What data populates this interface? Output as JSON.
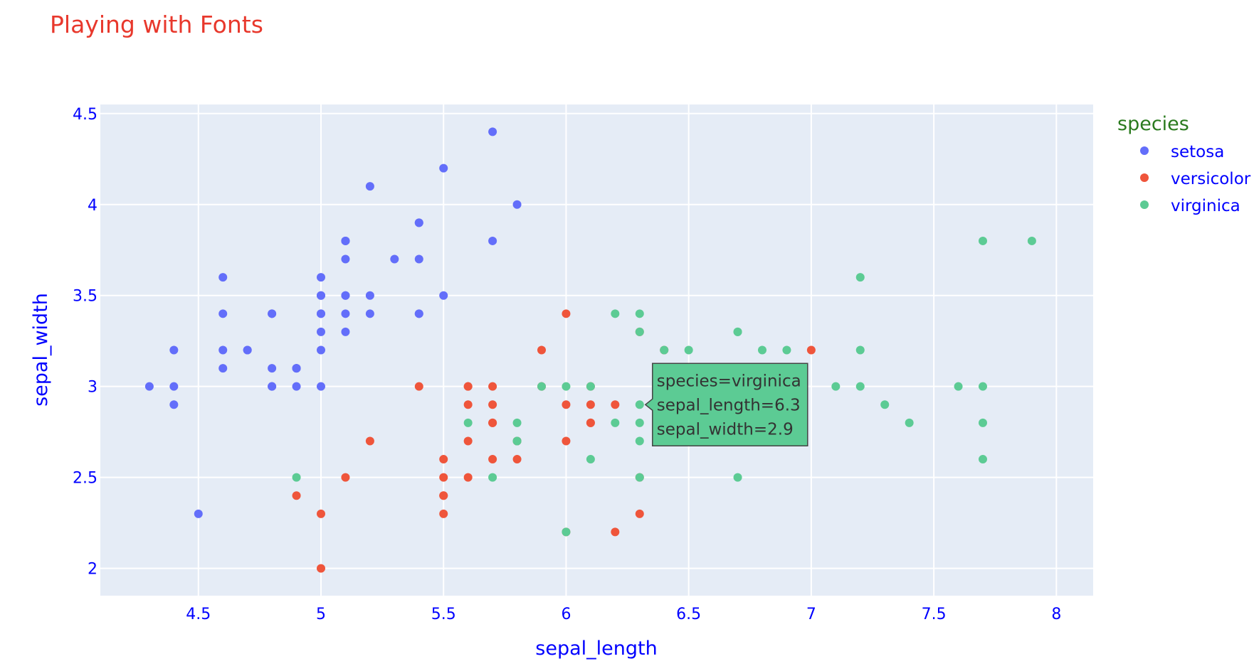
{
  "chart_data": {
    "type": "scatter",
    "title": "Playing with Fonts",
    "xlabel": "sepal_length",
    "ylabel": "sepal_width",
    "xlim": [
      4.1,
      8.15
    ],
    "ylim": [
      1.85,
      4.55
    ],
    "x_ticks": [
      4.5,
      5,
      5.5,
      6,
      6.5,
      7,
      7.5,
      8
    ],
    "y_ticks": [
      2,
      2.5,
      3,
      3.5,
      4,
      4.5
    ],
    "x_tick_labels": [
      "4.5",
      "5",
      "5.5",
      "6",
      "6.5",
      "7",
      "7.5",
      "8"
    ],
    "y_tick_labels": [
      "2",
      "2.5",
      "3",
      "3.5",
      "4",
      "4.5"
    ],
    "grid": true,
    "legend_title": "species",
    "legend_position": "top-right",
    "colors": {
      "title": "#e8382c",
      "axis_text": "#0000ff",
      "legend_title": "#2a7a1e",
      "plot_bg": "#e5ecf6",
      "grid": "#ffffff"
    },
    "series": [
      {
        "name": "setosa",
        "color": "#636efa",
        "points": [
          [
            5.1,
            3.5
          ],
          [
            4.9,
            3.0
          ],
          [
            4.7,
            3.2
          ],
          [
            4.6,
            3.1
          ],
          [
            5.0,
            3.6
          ],
          [
            5.4,
            3.9
          ],
          [
            4.6,
            3.4
          ],
          [
            5.0,
            3.4
          ],
          [
            4.4,
            2.9
          ],
          [
            4.9,
            3.1
          ],
          [
            5.4,
            3.7
          ],
          [
            4.8,
            3.4
          ],
          [
            4.8,
            3.0
          ],
          [
            4.3,
            3.0
          ],
          [
            5.8,
            4.0
          ],
          [
            5.7,
            4.4
          ],
          [
            5.4,
            3.9
          ],
          [
            5.1,
            3.5
          ],
          [
            5.7,
            3.8
          ],
          [
            5.1,
            3.8
          ],
          [
            5.4,
            3.4
          ],
          [
            5.1,
            3.7
          ],
          [
            4.6,
            3.6
          ],
          [
            5.1,
            3.3
          ],
          [
            4.8,
            3.4
          ],
          [
            5.0,
            3.0
          ],
          [
            5.0,
            3.4
          ],
          [
            5.2,
            3.5
          ],
          [
            5.2,
            3.4
          ],
          [
            4.7,
            3.2
          ],
          [
            4.8,
            3.1
          ],
          [
            5.4,
            3.4
          ],
          [
            5.2,
            4.1
          ],
          [
            5.5,
            4.2
          ],
          [
            4.9,
            3.1
          ],
          [
            5.0,
            3.2
          ],
          [
            5.5,
            3.5
          ],
          [
            4.9,
            3.1
          ],
          [
            4.4,
            3.0
          ],
          [
            5.1,
            3.4
          ],
          [
            5.0,
            3.5
          ],
          [
            4.5,
            2.3
          ],
          [
            4.4,
            3.2
          ],
          [
            5.0,
            3.5
          ],
          [
            5.1,
            3.8
          ],
          [
            4.8,
            3.0
          ],
          [
            5.1,
            3.8
          ],
          [
            4.6,
            3.2
          ],
          [
            5.3,
            3.7
          ],
          [
            5.0,
            3.3
          ]
        ]
      },
      {
        "name": "versicolor",
        "color": "#ef553b",
        "points": [
          [
            7.0,
            3.2
          ],
          [
            6.4,
            3.2
          ],
          [
            6.9,
            3.1
          ],
          [
            5.5,
            2.3
          ],
          [
            6.5,
            2.8
          ],
          [
            5.7,
            2.8
          ],
          [
            6.3,
            3.3
          ],
          [
            4.9,
            2.4
          ],
          [
            6.6,
            2.9
          ],
          [
            5.2,
            2.7
          ],
          [
            5.0,
            2.0
          ],
          [
            5.9,
            3.0
          ],
          [
            6.0,
            2.2
          ],
          [
            6.1,
            2.9
          ],
          [
            5.6,
            2.9
          ],
          [
            6.7,
            3.1
          ],
          [
            5.6,
            3.0
          ],
          [
            5.8,
            2.7
          ],
          [
            6.2,
            2.2
          ],
          [
            5.6,
            2.5
          ],
          [
            5.9,
            3.2
          ],
          [
            6.1,
            2.8
          ],
          [
            6.3,
            2.5
          ],
          [
            6.1,
            2.8
          ],
          [
            6.4,
            2.9
          ],
          [
            6.6,
            3.0
          ],
          [
            6.8,
            2.8
          ],
          [
            6.7,
            3.0
          ],
          [
            6.0,
            2.9
          ],
          [
            5.7,
            2.6
          ],
          [
            5.5,
            2.4
          ],
          [
            5.5,
            2.4
          ],
          [
            5.8,
            2.7
          ],
          [
            6.0,
            2.7
          ],
          [
            5.4,
            3.0
          ],
          [
            6.0,
            3.4
          ],
          [
            6.7,
            3.1
          ],
          [
            6.3,
            2.3
          ],
          [
            5.6,
            3.0
          ],
          [
            5.5,
            2.5
          ],
          [
            5.5,
            2.6
          ],
          [
            6.1,
            3.0
          ],
          [
            5.8,
            2.6
          ],
          [
            5.0,
            2.3
          ],
          [
            5.6,
            2.7
          ],
          [
            5.7,
            3.0
          ],
          [
            5.7,
            2.9
          ],
          [
            6.2,
            2.9
          ],
          [
            5.1,
            2.5
          ],
          [
            5.7,
            2.8
          ]
        ]
      },
      {
        "name": "virginica",
        "color": "#5ccb94",
        "points": [
          [
            6.3,
            3.3
          ],
          [
            5.8,
            2.7
          ],
          [
            7.1,
            3.0
          ],
          [
            6.3,
            2.9
          ],
          [
            6.5,
            3.0
          ],
          [
            7.6,
            3.0
          ],
          [
            4.9,
            2.5
          ],
          [
            7.3,
            2.9
          ],
          [
            6.7,
            2.5
          ],
          [
            7.2,
            3.6
          ],
          [
            6.5,
            3.2
          ],
          [
            6.4,
            2.7
          ],
          [
            6.8,
            3.0
          ],
          [
            5.7,
            2.5
          ],
          [
            5.8,
            2.8
          ],
          [
            6.4,
            3.2
          ],
          [
            6.5,
            3.0
          ],
          [
            7.7,
            3.8
          ],
          [
            7.7,
            2.6
          ],
          [
            6.0,
            2.2
          ],
          [
            6.9,
            3.2
          ],
          [
            5.6,
            2.8
          ],
          [
            7.7,
            2.8
          ],
          [
            6.3,
            2.7
          ],
          [
            6.7,
            3.3
          ],
          [
            7.2,
            3.2
          ],
          [
            6.2,
            2.8
          ],
          [
            6.1,
            3.0
          ],
          [
            6.4,
            2.8
          ],
          [
            7.2,
            3.0
          ],
          [
            7.4,
            2.8
          ],
          [
            7.9,
            3.8
          ],
          [
            6.4,
            2.8
          ],
          [
            6.3,
            2.8
          ],
          [
            6.1,
            2.6
          ],
          [
            7.7,
            3.0
          ],
          [
            6.3,
            3.4
          ],
          [
            6.4,
            3.1
          ],
          [
            6.0,
            3.0
          ],
          [
            6.9,
            3.1
          ],
          [
            6.7,
            3.1
          ],
          [
            6.9,
            3.1
          ],
          [
            5.8,
            2.7
          ],
          [
            6.8,
            3.2
          ],
          [
            6.7,
            3.3
          ],
          [
            6.7,
            3.0
          ],
          [
            6.3,
            2.5
          ],
          [
            6.5,
            3.0
          ],
          [
            6.2,
            3.4
          ],
          [
            5.9,
            3.0
          ]
        ]
      }
    ],
    "tooltip": {
      "series": "virginica",
      "x": 6.3,
      "y": 2.9,
      "lines": [
        "species=virginica",
        "sepal_length=6.3",
        "sepal_width=2.9"
      ]
    }
  }
}
